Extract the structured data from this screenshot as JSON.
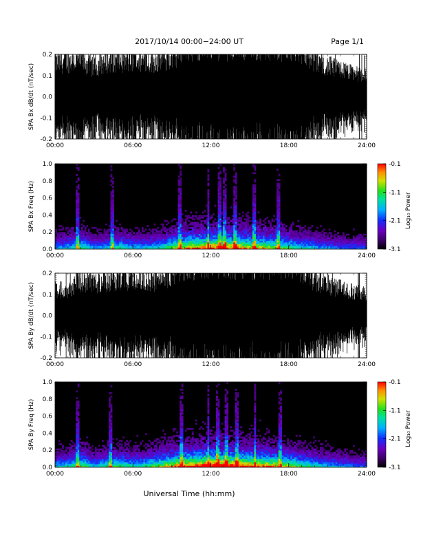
{
  "header": {
    "title": "2017/10/14  00:00−24:00 UT",
    "page": "Page 1/1"
  },
  "xaxis": {
    "label": "Universal Time (hh:mm)",
    "ticks": [
      "00:00",
      "06:00",
      "12:00",
      "18:00",
      "24:00"
    ],
    "range_hours": [
      0,
      24
    ]
  },
  "colorbar": {
    "label": "Log₁₀ Power",
    "ticks": [
      "-0.1",
      "-1.1",
      "-2.1",
      "-3.1"
    ],
    "range": [
      -3.1,
      -0.1
    ],
    "colors": [
      "#000000",
      "#3a0060",
      "#6a00c0",
      "#1030ff",
      "#00b0ff",
      "#00e0a0",
      "#20e020",
      "#d0e000",
      "#ff9000",
      "#ff0000"
    ]
  },
  "chart_data": [
    {
      "type": "line",
      "title": "",
      "ylabel": "SPA Bx dB/dt (nT/sec)",
      "ylim": [
        -0.2,
        0.2
      ],
      "yticks": [
        "0.2",
        "0.1",
        "0.0",
        "-0.1",
        "-0.2"
      ],
      "x_hours": [
        0,
        1,
        2,
        3,
        4,
        5,
        6,
        7,
        8,
        9,
        10,
        11,
        12,
        13,
        14,
        15,
        16,
        17,
        18,
        19,
        20,
        21,
        22,
        23,
        24
      ],
      "amplitude": [
        0.18,
        0.2,
        0.2,
        0.16,
        0.2,
        0.2,
        0.2,
        0.2,
        0.2,
        0.22,
        0.3,
        0.3,
        0.3,
        0.3,
        0.3,
        0.3,
        0.3,
        0.3,
        0.3,
        0.28,
        0.2,
        0.17,
        0.15,
        0.13,
        0.12
      ],
      "color": "#000000"
    },
    {
      "type": "heatmap",
      "title": "",
      "ylabel": "SPA Bx Freq (Hz)",
      "ylim": [
        0.0,
        1.0
      ],
      "yticks": [
        "1.0",
        "0.8",
        "0.6",
        "0.4",
        "0.2",
        "0.0"
      ],
      "zlim": [
        -3.1,
        -0.1
      ],
      "activity_hours": [
        0,
        1,
        2,
        3,
        4,
        5,
        6,
        7,
        8,
        9,
        10,
        11,
        12,
        13,
        14,
        15,
        16,
        17,
        18,
        19,
        20,
        21,
        22,
        23,
        24
      ],
      "activity": [
        0.35,
        0.4,
        0.55,
        0.35,
        0.4,
        0.5,
        0.4,
        0.4,
        0.45,
        0.6,
        0.75,
        0.8,
        0.85,
        0.85,
        0.8,
        0.75,
        0.7,
        0.65,
        0.55,
        0.45,
        0.4,
        0.35,
        0.3,
        0.3,
        0.28
      ],
      "bursts_hours": [
        1.7,
        4.4,
        9.6,
        11.8,
        12.7,
        13.1,
        13.9,
        15.3,
        17.2
      ]
    },
    {
      "type": "line",
      "title": "",
      "ylabel": "SPA By dB/dt (nT/sec)",
      "ylim": [
        -0.2,
        0.2
      ],
      "yticks": [
        "0.2",
        "0.1",
        "0.0",
        "-0.1",
        "-0.2"
      ],
      "x_hours": [
        0,
        1,
        2,
        3,
        4,
        5,
        6,
        7,
        8,
        9,
        10,
        11,
        12,
        13,
        14,
        15,
        16,
        17,
        18,
        19,
        20,
        21,
        22,
        23,
        24
      ],
      "amplitude": [
        0.14,
        0.15,
        0.2,
        0.18,
        0.2,
        0.2,
        0.2,
        0.2,
        0.2,
        0.24,
        0.3,
        0.3,
        0.3,
        0.3,
        0.3,
        0.3,
        0.3,
        0.3,
        0.3,
        0.26,
        0.2,
        0.17,
        0.15,
        0.13,
        0.12
      ],
      "color": "#000000"
    },
    {
      "type": "heatmap",
      "title": "",
      "ylabel": "SPA By Freq (Hz)",
      "ylim": [
        0.0,
        1.0
      ],
      "yticks": [
        "1.0",
        "0.8",
        "0.6",
        "0.4",
        "0.2",
        "0.0"
      ],
      "zlim": [
        -3.1,
        -0.1
      ],
      "activity_hours": [
        0,
        1,
        2,
        3,
        4,
        5,
        6,
        7,
        8,
        9,
        10,
        11,
        12,
        13,
        14,
        15,
        16,
        17,
        18,
        19,
        20,
        21,
        22,
        23,
        24
      ],
      "activity": [
        0.4,
        0.45,
        0.6,
        0.4,
        0.5,
        0.55,
        0.45,
        0.5,
        0.6,
        0.75,
        0.85,
        0.9,
        0.95,
        0.95,
        0.9,
        0.85,
        0.8,
        0.75,
        0.65,
        0.55,
        0.45,
        0.4,
        0.35,
        0.3,
        0.3
      ],
      "bursts_hours": [
        1.7,
        4.3,
        9.7,
        11.8,
        12.5,
        13.2,
        14.0,
        15.4,
        17.3
      ]
    }
  ]
}
